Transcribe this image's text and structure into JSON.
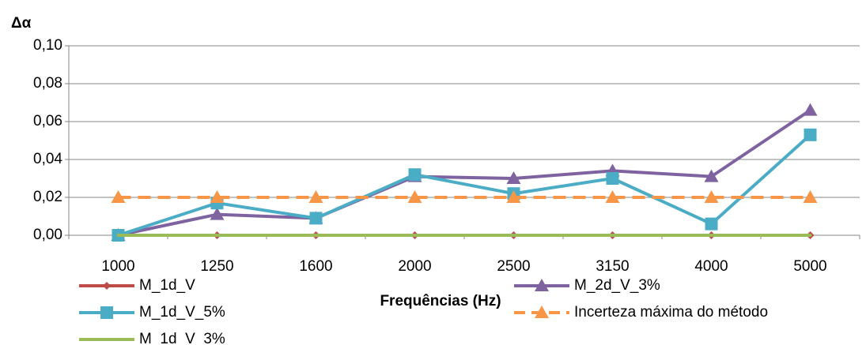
{
  "chart_data": {
    "type": "line",
    "y_label": "Δα",
    "x_label": "Frequências (Hz)",
    "categories": [
      "1000",
      "1250",
      "1600",
      "2000",
      "2500",
      "3150",
      "4000",
      "5000"
    ],
    "ylim": [
      0,
      0.1
    ],
    "yticks": [
      {
        "value": 0,
        "label": "0,00"
      },
      {
        "value": 0.02,
        "label": "0,02"
      },
      {
        "value": 0.04,
        "label": "0,04"
      },
      {
        "value": 0.06,
        "label": "0,06"
      },
      {
        "value": 0.08,
        "label": "0,08"
      },
      {
        "value": 0.1,
        "label": "0,10"
      }
    ],
    "grid": true,
    "series": [
      {
        "name": "M_1d_V",
        "color": "#be4b48",
        "marker": "diamond",
        "values": [
          0,
          0,
          0,
          0,
          0,
          0,
          0,
          0
        ]
      },
      {
        "name": "M_2d_V_3%",
        "color": "#7f63a1",
        "marker": "triangle",
        "values": [
          0,
          0.011,
          0.009,
          0.031,
          0.03,
          0.034,
          0.031,
          0.066
        ]
      },
      {
        "name": "M_1d_V_5%",
        "color": "#4bacc6",
        "marker": "square",
        "values": [
          0,
          0.017,
          0.009,
          0.032,
          0.022,
          0.03,
          0.006,
          0.053
        ]
      },
      {
        "name": "Incerteza máxima do método",
        "color": "#f79646",
        "marker": "triangle",
        "dashed": true,
        "values": [
          0.02,
          0.02,
          0.02,
          0.02,
          0.02,
          0.02,
          0.02,
          0.02
        ]
      },
      {
        "name": "M_1d_V_3%",
        "color": "#9bbb59",
        "marker": "none",
        "values": [
          0,
          0,
          0,
          0,
          0,
          0,
          0,
          0
        ]
      }
    ]
  }
}
